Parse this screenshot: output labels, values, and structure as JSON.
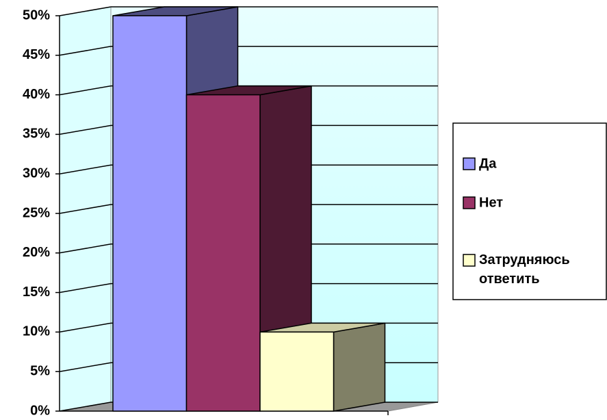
{
  "chart_data": {
    "type": "bar3d",
    "series": [
      {
        "name": "Да",
        "color": "#9999ff",
        "values": [
          50
        ]
      },
      {
        "name": "Нет",
        "color": "#993366",
        "values": [
          40
        ]
      },
      {
        "name": "Затрудняюсь ответить",
        "color": "#ffffcc",
        "values": [
          10
        ]
      }
    ],
    "ylim": [
      0,
      50
    ],
    "yticks": [
      {
        "value": 0,
        "label": "0%"
      },
      {
        "value": 5,
        "label": "5%"
      },
      {
        "value": 10,
        "label": "10%"
      },
      {
        "value": 15,
        "label": "15%"
      },
      {
        "value": 20,
        "label": "20%"
      },
      {
        "value": 25,
        "label": "25%"
      },
      {
        "value": 30,
        "label": "30%"
      },
      {
        "value": 35,
        "label": "35%"
      },
      {
        "value": 40,
        "label": "40%"
      },
      {
        "value": 45,
        "label": "45%"
      },
      {
        "value": 50,
        "label": "50%"
      }
    ],
    "grid": true,
    "legend": "right"
  }
}
